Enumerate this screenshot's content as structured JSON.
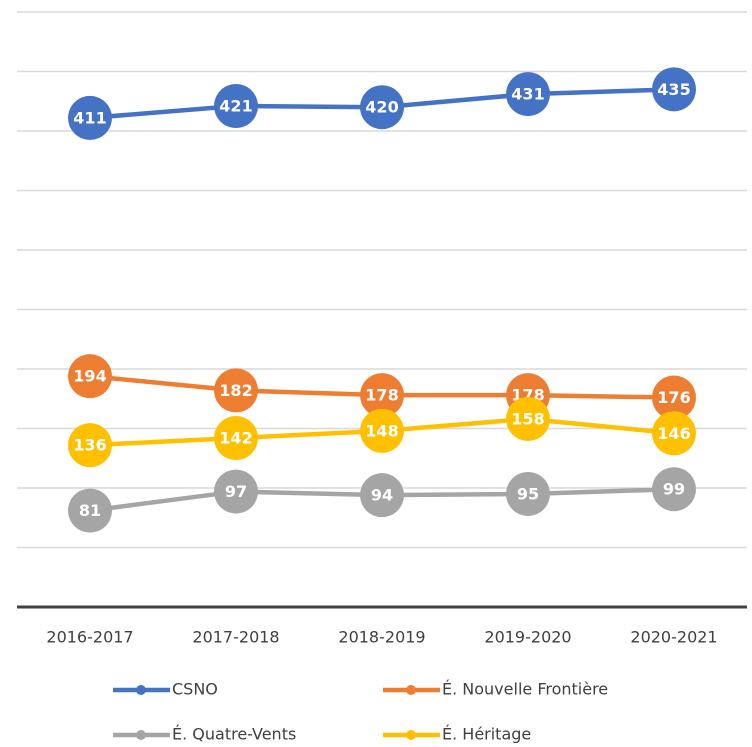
{
  "chart_data": {
    "type": "line",
    "categories": [
      "2016-2017",
      "2017-2018",
      "2018-2019",
      "2019-2020",
      "2020-2021"
    ],
    "series": [
      {
        "name": "CSNO",
        "color": "#4472c4",
        "values": [
          411,
          421,
          420,
          431,
          435
        ]
      },
      {
        "name": "É.  Nouvelle Frontière",
        "color": "#ed7d31",
        "values": [
          194,
          182,
          178,
          178,
          176
        ]
      },
      {
        "name": "É. Quatre-Vents",
        "color": "#a5a5a5",
        "values": [
          81,
          97,
          94,
          95,
          99
        ]
      },
      {
        "name": "É. Héritage",
        "color": "#ffc000",
        "values": [
          136,
          142,
          148,
          158,
          146
        ]
      }
    ],
    "ylim": [
      0,
      500
    ],
    "yticks": [
      0,
      50,
      100,
      150,
      200,
      250,
      300,
      350,
      400,
      450,
      500
    ],
    "grid": true,
    "legend": "bottom"
  }
}
